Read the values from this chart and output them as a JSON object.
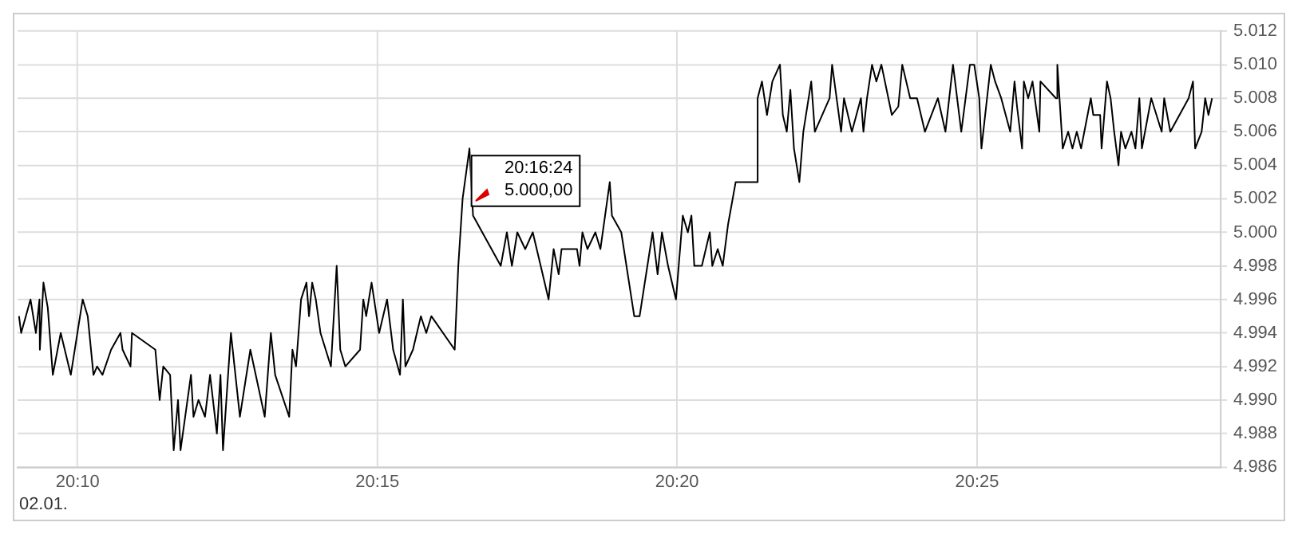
{
  "chart_data": {
    "type": "line",
    "x": [
      20.1504,
      20.151,
      20.1536,
      20.1551,
      20.1561,
      20.1562,
      20.1572,
      20.1584,
      20.1598,
      20.162,
      20.1648,
      20.1681,
      20.1695,
      20.1711,
      20.1721,
      20.1736,
      20.176,
      20.1786,
      20.1792,
      20.1814,
      20.1818,
      20.1883,
      20.1895,
      20.1905,
      20.1924,
      20.1934,
      20.1946,
      20.1953,
      20.1982,
      20.1989,
      20.2003,
      20.2021,
      20.2035,
      20.2054,
      20.2064,
      20.2071,
      20.2093,
      20.2118,
      20.2147,
      20.2187,
      20.2204,
      20.2216,
      20.2255,
      20.2264,
      20.2274,
      20.2288,
      20.2303,
      20.231,
      20.2319,
      20.2329,
      20.2342,
      20.2371,
      20.2387,
      20.2397,
      20.2411,
      20.2452,
      20.2461,
      20.2469,
      20.2484,
      20.2505,
      20.2527,
      20.2544,
      20.2563,
      20.2571,
      20.2578,
      20.2599,
      20.2621,
      20.2636,
      20.265,
      20.2715,
      20.2725,
      20.2737,
      20.2756,
      20.2766,
      20.2843,
      20.286,
      20.2874,
      20.2889,
      20.2911,
      20.2932,
      20.2954,
      20.2976,
      20.299,
      20.3004,
      20.3012,
      20.3055,
      20.3062,
      20.307,
      20.3084,
      20.3106,
      20.312,
      20.3146,
      20.3152,
      20.3178,
      20.3214,
      20.3229,
      20.3265,
      20.3279,
      20.3291,
      20.3308,
      20.333,
      20.3349,
      20.3363,
      20.3373,
      20.3381,
      20.3402,
      20.3424,
      20.3431,
      20.3446,
      20.346,
      20.3475,
      20.3496,
      20.3554,
      20.3557,
      20.3569,
      20.3583,
      20.3598,
      20.3619,
      20.3627,
      20.3638,
      20.3648,
      20.3658,
      20.3673,
      20.3684,
      20.3706,
      20.3716,
      20.3757,
      20.3764,
      20.3789,
      20.3797,
      20.3819,
      20.3844,
      20.3851,
      20.3861,
      20.3875,
      20.3887,
      20.3901,
      20.393,
      20.3948,
      20.3959,
      20.3981,
      20.4,
      20.4022,
      20.4058,
      20.4079,
      20.41,
      20.4123,
      20.4147,
      20.4159,
      20.4173,
      20.4179,
      20.4205,
      20.4217,
      20.4234,
      20.4259,
      20.4271,
      20.4278,
      20.4292,
      20.4297,
      20.4309,
      20.4321,
      20.434,
      20.4343,
      20.4386,
      20.439,
      20.4405,
      20.442,
      20.4432,
      20.4444,
      20.4456,
      20.4483,
      20.449,
      20.4509,
      20.4513,
      20.4528,
      20.4538,
      20.4548,
      20.456,
      20.4567,
      20.4579,
      20.4596,
      20.4607,
      20.4618,
      20.4625,
      20.4651,
      20.468,
      20.4687,
      20.4704,
      20.4755,
      20.4767,
      20.4773,
      20.4791,
      20.4801,
      20.481,
      20.482
    ],
    "series": [
      {
        "color": "#000000",
        "values": [
          4.995,
          4.994,
          4.996,
          4.994,
          4.996,
          4.993,
          4.997,
          4.9955,
          4.9915,
          4.994,
          4.9915,
          4.996,
          4.995,
          4.9915,
          4.992,
          4.9915,
          4.993,
          4.994,
          4.993,
          4.992,
          4.994,
          4.993,
          4.99,
          4.992,
          4.9915,
          4.987,
          4.99,
          4.987,
          4.9915,
          4.989,
          4.99,
          4.989,
          4.9915,
          4.988,
          4.9915,
          4.987,
          4.994,
          4.989,
          4.993,
          4.989,
          4.994,
          4.9915,
          4.989,
          4.993,
          4.992,
          4.996,
          4.997,
          4.995,
          4.997,
          4.996,
          4.994,
          4.992,
          4.998,
          4.993,
          4.992,
          4.993,
          4.996,
          4.995,
          4.997,
          4.994,
          4.996,
          4.993,
          4.9915,
          4.996,
          4.992,
          4.993,
          4.995,
          4.994,
          4.995,
          4.993,
          4.998,
          5.002,
          5.005,
          5.001,
          4.998,
          5,
          4.998,
          5,
          4.999,
          5,
          4.998,
          4.996,
          4.999,
          4.9975,
          4.999,
          4.999,
          4.998,
          5,
          4.999,
          5,
          4.999,
          5.003,
          5.001,
          5,
          4.995,
          4.995,
          5,
          4.9975,
          5,
          4.998,
          4.996,
          5.001,
          5,
          5.001,
          4.998,
          4.998,
          5,
          4.998,
          4.999,
          4.998,
          5.0005,
          5.003,
          5.003,
          5.008,
          5.009,
          5.007,
          5.009,
          5.01,
          5.007,
          5.006,
          5.0085,
          5.005,
          5.003,
          5.006,
          5.009,
          5.006,
          5.008,
          5.01,
          5.006,
          5.008,
          5.006,
          5.008,
          5.006,
          5.008,
          5.01,
          5.009,
          5.01,
          5.007,
          5.0075,
          5.01,
          5.008,
          5.008,
          5.006,
          5.008,
          5.006,
          5.01,
          5.006,
          5.01,
          5.01,
          5.008,
          5.005,
          5.01,
          5.009,
          5.008,
          5.006,
          5.009,
          5.0075,
          5.005,
          5.009,
          5.008,
          5.009,
          5.006,
          5.009,
          5.008,
          5.01,
          5.005,
          5.006,
          5.005,
          5.006,
          5.005,
          5.008,
          5.007,
          5.007,
          5.005,
          5.009,
          5.008,
          5.006,
          5.004,
          5.006,
          5.005,
          5.006,
          5.005,
          5.008,
          5.005,
          5.008,
          5.006,
          5.008,
          5.006,
          5.008,
          5.009,
          5.005,
          5.006,
          5.008,
          5.007,
          5.008
        ]
      }
    ],
    "xlim": [
      20.15,
      20.4844
    ],
    "xticks": [
      {
        "value": 20.1667,
        "label": "20:10"
      },
      {
        "value": 20.25,
        "label": "20:15"
      },
      {
        "value": 20.3333,
        "label": "20:20"
      },
      {
        "value": 20.4167,
        "label": "20:25"
      }
    ],
    "ylim": [
      4.986,
      5.012
    ],
    "yticks": [
      4.986,
      4.988,
      {
        "value": 4.99,
        "label": "4.990"
      },
      4.992,
      4.994,
      4.996,
      4.998,
      {
        "value": 5,
        "label": "5.000"
      },
      5.002,
      5.004,
      5.006,
      5.008,
      {
        "value": 5.01,
        "label": "5.010"
      },
      5.012
    ],
    "grid": true,
    "legend": false,
    "marker": "none",
    "line_style": "solid",
    "annotations": [
      "02.01.",
      "20:16:24\n5.000,00"
    ]
  }
}
